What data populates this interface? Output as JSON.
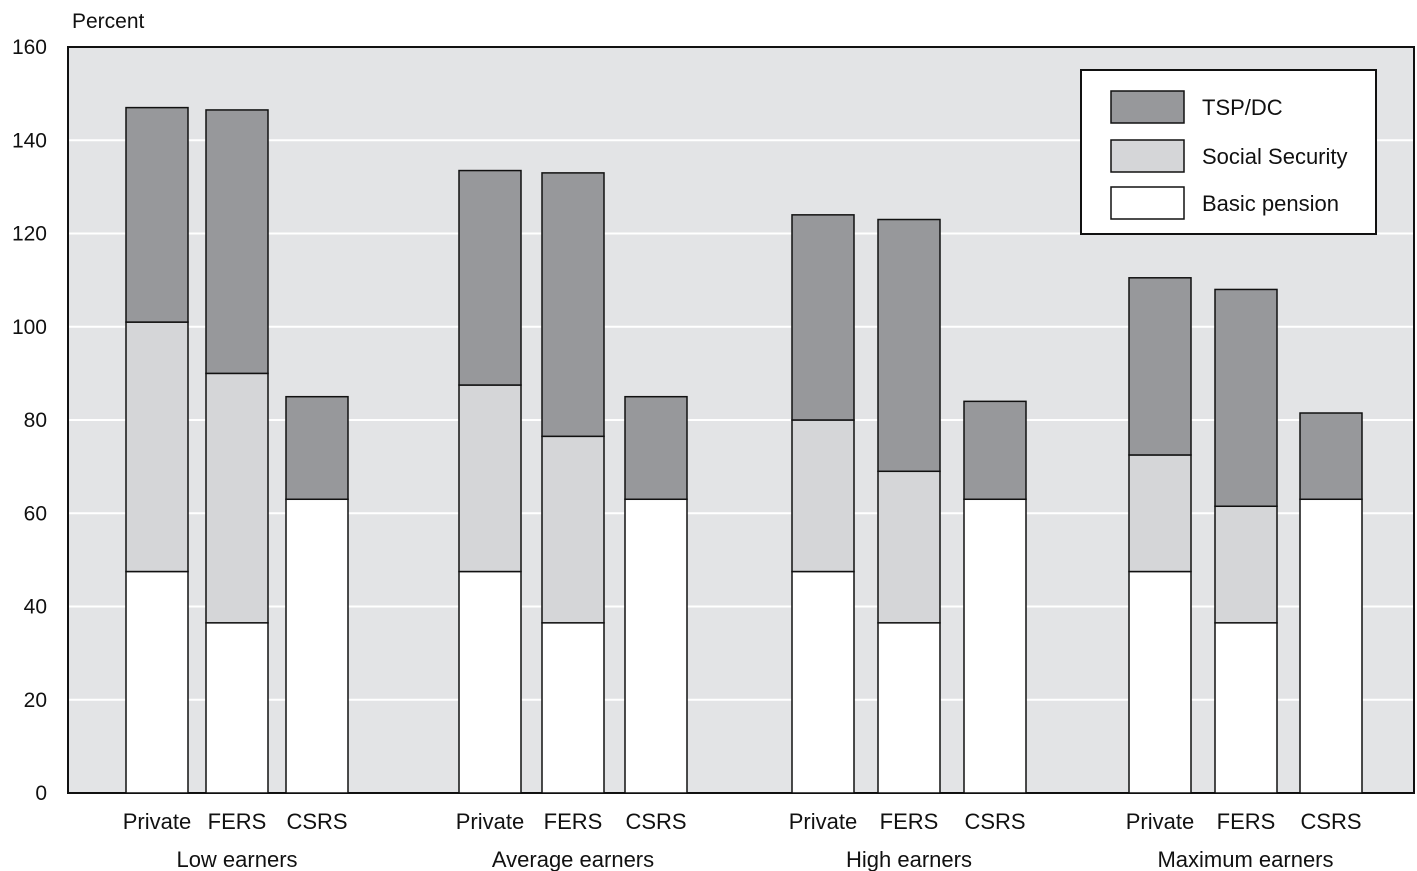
{
  "chart_data": {
    "type": "bar",
    "stacked": true,
    "ylabel": "Percent",
    "ylim": [
      0,
      160
    ],
    "yticks": [
      "0",
      "20",
      "40",
      "60",
      "80",
      "100",
      "120",
      "140",
      "160"
    ],
    "grid": true,
    "legend_position": "top-right",
    "groups": [
      {
        "label": "Low earners",
        "bars": [
          {
            "label": "Private",
            "basic": 47.5,
            "ss": 53.5,
            "tsp": 46
          },
          {
            "label": "FERS",
            "basic": 36.5,
            "ss": 53.5,
            "tsp": 56.5
          },
          {
            "label": "CSRS",
            "basic": 63,
            "ss": 0,
            "tsp": 22
          }
        ]
      },
      {
        "label": "Average earners",
        "bars": [
          {
            "label": "Private",
            "basic": 47.5,
            "ss": 40,
            "tsp": 46
          },
          {
            "label": "FERS",
            "basic": 36.5,
            "ss": 40,
            "tsp": 56.5
          },
          {
            "label": "CSRS",
            "basic": 63,
            "ss": 0,
            "tsp": 22
          }
        ]
      },
      {
        "label": "High earners",
        "bars": [
          {
            "label": "Private",
            "basic": 47.5,
            "ss": 32.5,
            "tsp": 44
          },
          {
            "label": "FERS",
            "basic": 36.5,
            "ss": 32.5,
            "tsp": 54
          },
          {
            "label": "CSRS",
            "basic": 63,
            "ss": 0,
            "tsp": 21
          }
        ]
      },
      {
        "label": "Maximum earners",
        "bars": [
          {
            "label": "Private",
            "basic": 47.5,
            "ss": 25,
            "tsp": 38
          },
          {
            "label": "FERS",
            "basic": 36.5,
            "ss": 25,
            "tsp": 46.5
          },
          {
            "label": "CSRS",
            "basic": 63,
            "ss": 0,
            "tsp": 18.5
          }
        ]
      }
    ],
    "series": [
      {
        "key": "tsp",
        "name": "TSP/DC",
        "color": "#97989b"
      },
      {
        "key": "ss",
        "name": "Social Security",
        "color": "#d5d6d8"
      },
      {
        "key": "basic",
        "name": "Basic pension",
        "color": "#ffffff"
      }
    ],
    "plot_background": "#e3e4e6"
  }
}
